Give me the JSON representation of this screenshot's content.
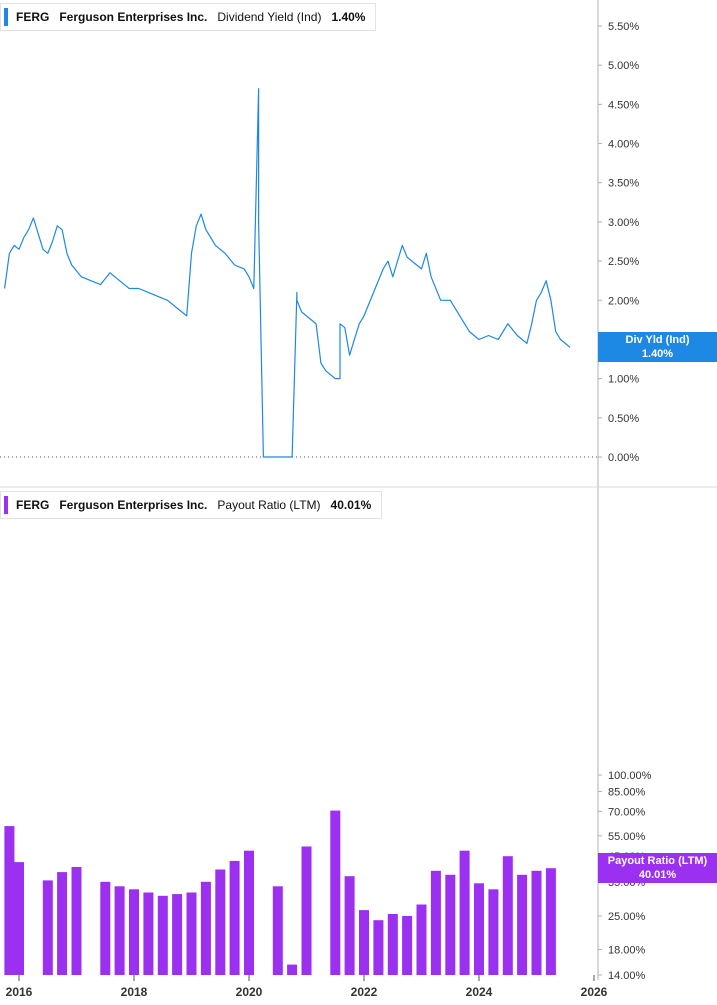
{
  "colors": {
    "yield": "#1e88e5",
    "payout": "#9b30f0",
    "axis": "#b0b0b0",
    "text": "#333333"
  },
  "panel1": {
    "legend": {
      "ticker": "FERG",
      "name": "Ferguson Enterprises Inc.",
      "metric": "Dividend Yield (Ind)",
      "value": "1.40%"
    },
    "badge": {
      "label": "Div Yld (Ind)",
      "value": "1.40%"
    },
    "y_ticks": [
      "0.00%",
      "0.50%",
      "1.00%",
      "1.50%",
      "2.00%",
      "2.50%",
      "3.00%",
      "3.50%",
      "4.00%",
      "4.50%",
      "5.00%",
      "5.50%"
    ]
  },
  "panel2": {
    "legend": {
      "ticker": "FERG",
      "name": "Ferguson Enterprises Inc.",
      "metric": "Payout Ratio (LTM)",
      "value": "40.01%"
    },
    "badge": {
      "label": "Payout Ratio (LTM)",
      "value": "40.01%"
    },
    "y_ticks": [
      "14.00%",
      "18.00%",
      "25.00%",
      "35.00%",
      "45.00%",
      "55.00%",
      "70.00%",
      "85.00%",
      "100.00%"
    ]
  },
  "x_ticks": [
    "2016",
    "2018",
    "2020",
    "2022",
    "2024",
    "2026"
  ],
  "chart_data": [
    {
      "type": "line",
      "series": [
        {
          "name": "Dividend Yield (Ind)",
          "x": [
            "2015-10",
            "2015-11",
            "2015-12",
            "2016-01",
            "2016-02",
            "2016-03",
            "2016-04",
            "2016-05",
            "2016-06",
            "2016-07",
            "2016-08",
            "2016-09",
            "2016-10",
            "2016-11",
            "2016-12",
            "2017-02",
            "2017-04",
            "2017-06",
            "2017-08",
            "2017-10",
            "2017-12",
            "2018-02",
            "2018-04",
            "2018-06",
            "2018-08",
            "2018-10",
            "2018-11",
            "2018-12",
            "2019-01",
            "2019-02",
            "2019-03",
            "2019-04",
            "2019-05",
            "2019-06",
            "2019-08",
            "2019-10",
            "2019-12",
            "2020-01",
            "2020-02",
            "2020-03",
            "2020-03",
            "2020-04",
            "2020-04",
            "2020-05",
            "2020-06",
            "2020-07",
            "2020-08",
            "2020-09",
            "2020-10",
            "2020-11",
            "2020-11",
            "2020-12",
            "2021-02",
            "2021-03",
            "2021-04",
            "2021-05",
            "2021-06",
            "2021-07",
            "2021-08",
            "2021-08",
            "2021-09",
            "2021-10",
            "2021-11",
            "2021-12",
            "2022-01",
            "2022-03",
            "2022-05",
            "2022-06",
            "2022-07",
            "2022-08",
            "2022-09",
            "2022-10",
            "2022-12",
            "2023-01",
            "2023-02",
            "2023-03",
            "2023-05",
            "2023-07",
            "2023-09",
            "2023-11",
            "2024-01",
            "2024-03",
            "2024-05",
            "2024-07",
            "2024-09",
            "2024-11",
            "2024-12",
            "2025-01",
            "2025-02",
            "2025-03",
            "2025-04",
            "2025-05",
            "2025-06",
            "2025-07",
            "2025-08"
          ],
          "values": [
            2.15,
            2.6,
            2.7,
            2.65,
            2.8,
            2.9,
            3.05,
            2.85,
            2.65,
            2.6,
            2.75,
            2.95,
            2.9,
            2.6,
            2.45,
            2.3,
            2.25,
            2.2,
            2.35,
            2.25,
            2.15,
            2.15,
            2.1,
            2.05,
            2.0,
            1.9,
            1.85,
            1.8,
            2.6,
            2.95,
            3.1,
            2.9,
            2.8,
            2.7,
            2.6,
            2.45,
            2.4,
            2.3,
            2.15,
            4.7,
            3.0,
            0.0,
            0.0,
            0.0,
            0.0,
            0.0,
            0.0,
            0.0,
            0.0,
            2.1,
            2.0,
            1.85,
            1.75,
            1.7,
            1.2,
            1.1,
            1.05,
            1.0,
            1.0,
            1.7,
            1.65,
            1.3,
            1.5,
            1.7,
            1.8,
            2.1,
            2.4,
            2.5,
            2.3,
            2.5,
            2.7,
            2.55,
            2.45,
            2.4,
            2.6,
            2.3,
            2.0,
            2.0,
            1.8,
            1.6,
            1.5,
            1.55,
            1.5,
            1.7,
            1.55,
            1.45,
            1.7,
            2.0,
            2.1,
            2.25,
            2.0,
            1.6,
            1.5,
            1.45,
            1.4
          ]
        }
      ],
      "ylim": [
        0,
        5.5
      ]
    },
    {
      "type": "bar",
      "series": [
        {
          "name": "Payout Ratio (LTM)",
          "x": [
            "2015-11",
            "2016-01",
            "2016-07",
            "2016-10",
            "2017-01",
            "2017-07",
            "2017-10",
            "2018-01",
            "2018-04",
            "2018-07",
            "2018-10",
            "2019-01",
            "2019-04",
            "2019-07",
            "2019-10",
            "2020-01",
            "2020-07",
            "2020-10",
            "2021-01",
            "2021-07",
            "2021-10",
            "2022-01",
            "2022-04",
            "2022-07",
            "2022-10",
            "2023-01",
            "2023-04",
            "2023-07",
            "2023-10",
            "2024-01",
            "2024-04",
            "2024-07",
            "2024-10",
            "2025-01",
            "2025-04"
          ],
          "values": [
            60.5,
            42.5,
            35.5,
            38.5,
            40.5,
            35.0,
            33.5,
            32.5,
            31.5,
            30.5,
            31.0,
            31.5,
            35.0,
            39.5,
            43.0,
            47.5,
            33.5,
            15.5,
            49.5,
            70.5,
            37.0,
            26.5,
            24.0,
            25.5,
            25.0,
            28.0,
            39.0,
            37.5,
            47.5,
            34.5,
            32.5,
            45.0,
            37.5,
            39.0,
            40.01
          ]
        }
      ],
      "ylim": [
        14,
        100
      ]
    }
  ]
}
